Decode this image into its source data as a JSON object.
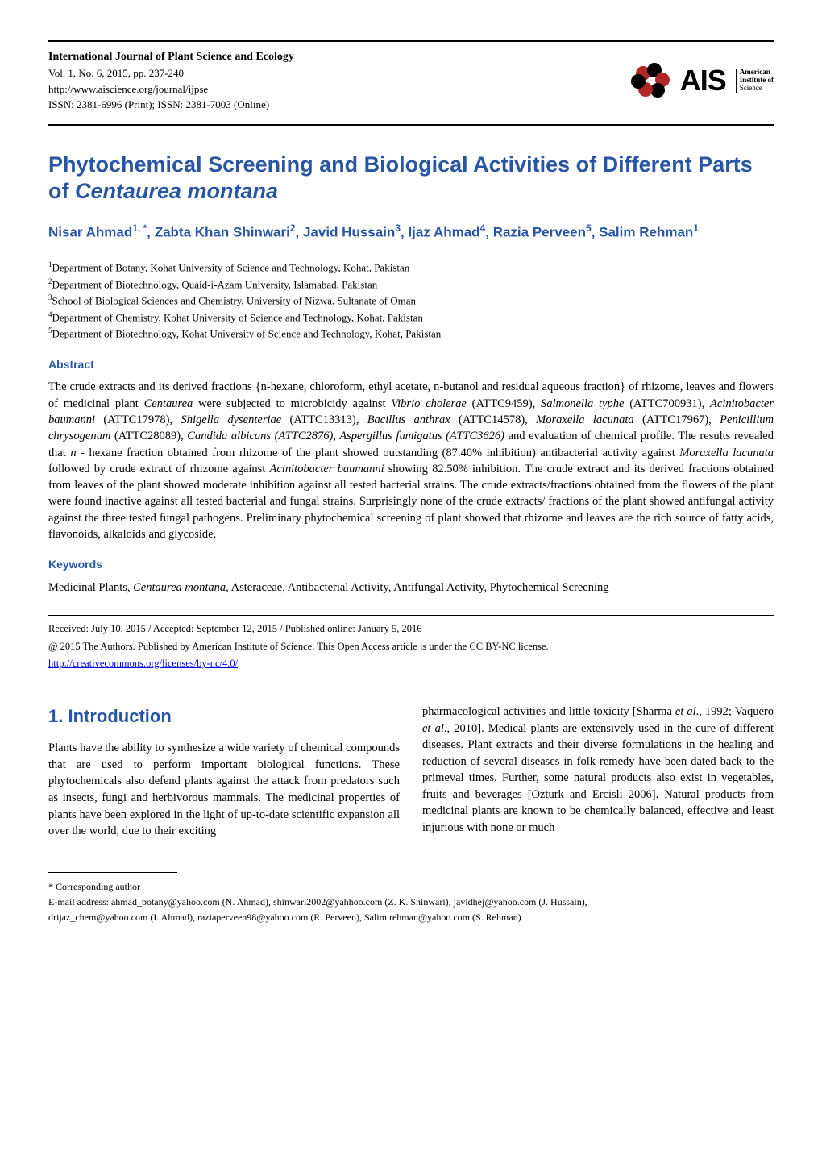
{
  "colors": {
    "heading_blue": "#2956a4",
    "logo_red": "#b22828",
    "logo_black": "#000000",
    "text": "#000000",
    "link": "#0000ee",
    "background": "#ffffff"
  },
  "typography": {
    "body_font": "Times New Roman",
    "heading_font": "Verdana",
    "title_fontsize": 27,
    "authors_fontsize": 17,
    "section_heading_fontsize": 14,
    "body_fontsize": 14.5,
    "footer_fontsize": 12
  },
  "header": {
    "journal_title": "International Journal of Plant Science and Ecology",
    "volume_line": "Vol. 1, No. 6, 2015, pp. 237-240",
    "url": "http://www.aiscience.org/journal/ijpse",
    "issn_line": "ISSN: 2381-6996 (Print); ISSN: 2381-7003 (Online)"
  },
  "logo": {
    "acronym": "AIS",
    "line1": "American",
    "line2": "Institute of",
    "line3": "Science"
  },
  "title": {
    "main": "Phytochemical Screening and Biological Activities of Different Parts of ",
    "italic": "Centaurea montana"
  },
  "authors_line": "Nisar Ahmad<sup>1, *</sup>, Zabta Khan Shinwari<sup>2</sup>, Javid Hussain<sup>3</sup>, Ijaz Ahmad<sup>4</sup>, Razia Perveen<sup>5</sup>, Salim Rehman<sup>1</sup>",
  "affiliations": [
    "Department of Botany, Kohat University of Science and Technology, Kohat, Pakistan",
    "Department of Biotechnology, Quaid-i-Azam University, Islamabad, Pakistan",
    "School of Biological Sciences and Chemistry, University of Nizwa, Sultanate of Oman",
    "Department of Chemistry, Kohat University of Science and Technology, Kohat, Pakistan",
    "Department of Biotechnology, Kohat University of Science and Technology, Kohat, Pakistan"
  ],
  "sections": {
    "abstract_heading": "Abstract",
    "abstract_text": "The crude extracts and its derived fractions {n-hexane, chloroform, ethyl acetate, n-butanol and residual aqueous fraction} of rhizome, leaves and flowers of medicinal plant <i>Centaurea</i> were subjected to microbicidy against <i>Vibrio cholerae</i> (ATTC9459), <i>Salmonella typhe</i> (ATTC700931), <i>Acinitobacter baumanni</i> (ATTC17978), <i>Shigella dysenteriae</i> (ATTC13313), <i>Bacillus anthrax</i> (ATTC14578), <i>Moraxella lacunata</i> (ATTC17967), <i>Penicillium chrysogenum</i> (ATTC28089), <i>Candida albicans (ATTC2876), Aspergillus fumigatus (ATTC3626)</i> and evaluation of chemical profile. The results revealed that <i>n</i> - hexane fraction obtained from rhizome of the plant showed outstanding (87.40% inhibition) antibacterial activity against <i>Moraxella lacunata</i> followed by crude extract of rhizome against <i>Acinitobacter baumanni</i> showing 82.50% inhibition. The crude extract and its derived fractions obtained from leaves of the plant showed moderate inhibition against all tested bacterial strains. The crude extracts/fractions obtained from the flowers of the plant were found inactive against all tested bacterial and fungal strains. Surprisingly none of the crude extracts/ fractions of the plant showed antifungal activity against the three tested fungal pathogens. Preliminary phytochemical screening of plant showed that rhizome and leaves are the rich source of fatty acids, flavonoids, alkaloids and glycoside.",
    "keywords_heading": "Keywords",
    "keywords_text": "Medicinal Plants, <i>Centaurea montana,</i> Asteraceae, Antibacterial Activity, Antifungal Activity, Phytochemical Screening",
    "dates_line": "Received: July 10, 2015 / Accepted: September 12, 2015 / Published online: January 5, 2016",
    "license_line": "@ 2015 The Authors. Published by American Institute of Science. This Open Access article is under the CC BY-NC license.",
    "license_url": "http://creativecommons.org/licenses/by-nc/4.0/",
    "intro_heading": "1. Introduction",
    "intro_col1": "Plants have the ability to synthesize a wide variety of chemical compounds that are used to perform important biological functions. These phytochemicals also defend plants against the attack from predators such as insects, fungi and herbivorous mammals. The medicinal properties of plants have been explored in the light of up-to-date scientific expansion all over the world, due to their exciting",
    "intro_col2": "pharmacological activities and little toxicity [Sharma <i>et al</i>., 1992; Vaquero <i>et al</i>., 2010]. Medical plants are extensively used in the cure of different diseases. Plant extracts and their diverse formulations in the healing and reduction of several diseases in folk remedy have been dated back to the primeval times. Further, some natural products also exist in vegetables, fruits and beverages [Ozturk and Ercisli 2006]. Natural products from medicinal plants are known to be chemically balanced, effective and least injurious with none or much"
  },
  "footer": {
    "corresponding": "* Corresponding author",
    "emails_line1": "E-mail address: ahmad_botany@yahoo.com (N. Ahmad), shinwari2002@yahhoo.com (Z. K. Shinwari), javidhej@yahoo.com (J. Hussain),",
    "emails_line2": "drijaz_chem@yahoo.com (I. Ahmad), raziaperveen98@yahoo.com (R. Perveen), Salim rehman@yahoo.com (S. Rehman)"
  }
}
